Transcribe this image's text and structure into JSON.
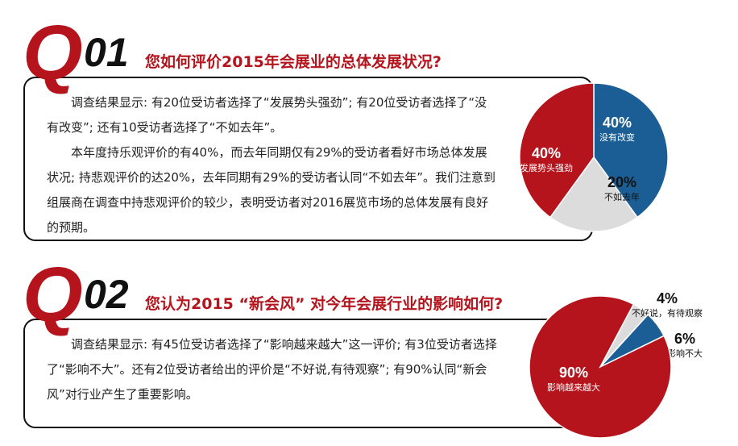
{
  "sections": [
    {
      "q": "Q",
      "num": "01",
      "title": "您如何评价2015年会展业的总体发展状况?",
      "paragraphs": [
        "调查结果显示: 有20位受访者选择了“发展势头强劲”; 有20位受访者选择了“没有改变”; 还有10受访者选择了“不如去年”。",
        "本年度持乐观评价的有40%，而去年同期仅有29%的受访者看好市场总体发展状况; 持悲观评价的达20%，去年同期有29%的受访者认同“不如去年”。我们注意到组展商在调查中持悲观评价的较少，表明受访者对2016展览市场的总体发展有良好的预期。"
      ]
    },
    {
      "q": "Q",
      "num": "02",
      "title": "您认为2015 “新会风” 对今年会展行业的影响如何?",
      "paragraphs": [
        "调查结果显示: 有45位受访者选择了“影响越来越大”这一评价; 有3位受访者选择了“影响不大”。还有2位受访者给出的评价是“不好说,有待观察”; 有90%认同“新会风”对行业产生了重要影响。"
      ]
    }
  ],
  "chart_data": [
    {
      "type": "pie",
      "categories": [
        "没有改变",
        "不如去年",
        "发展势头强劲"
      ],
      "values": [
        40,
        20,
        40
      ],
      "value_labels": [
        "40%",
        "20%",
        "40%"
      ],
      "colors": [
        "#1b5e95",
        "#dcdcdc",
        "#b5141c"
      ]
    },
    {
      "type": "pie",
      "categories": [
        "不好说，有待观察",
        "影响不大",
        "影响越来越大"
      ],
      "values": [
        4,
        6,
        90
      ],
      "value_labels": [
        "4%",
        "6%",
        "90%"
      ],
      "colors": [
        "#dcdcdc",
        "#1b5e95",
        "#b5141c"
      ]
    }
  ]
}
